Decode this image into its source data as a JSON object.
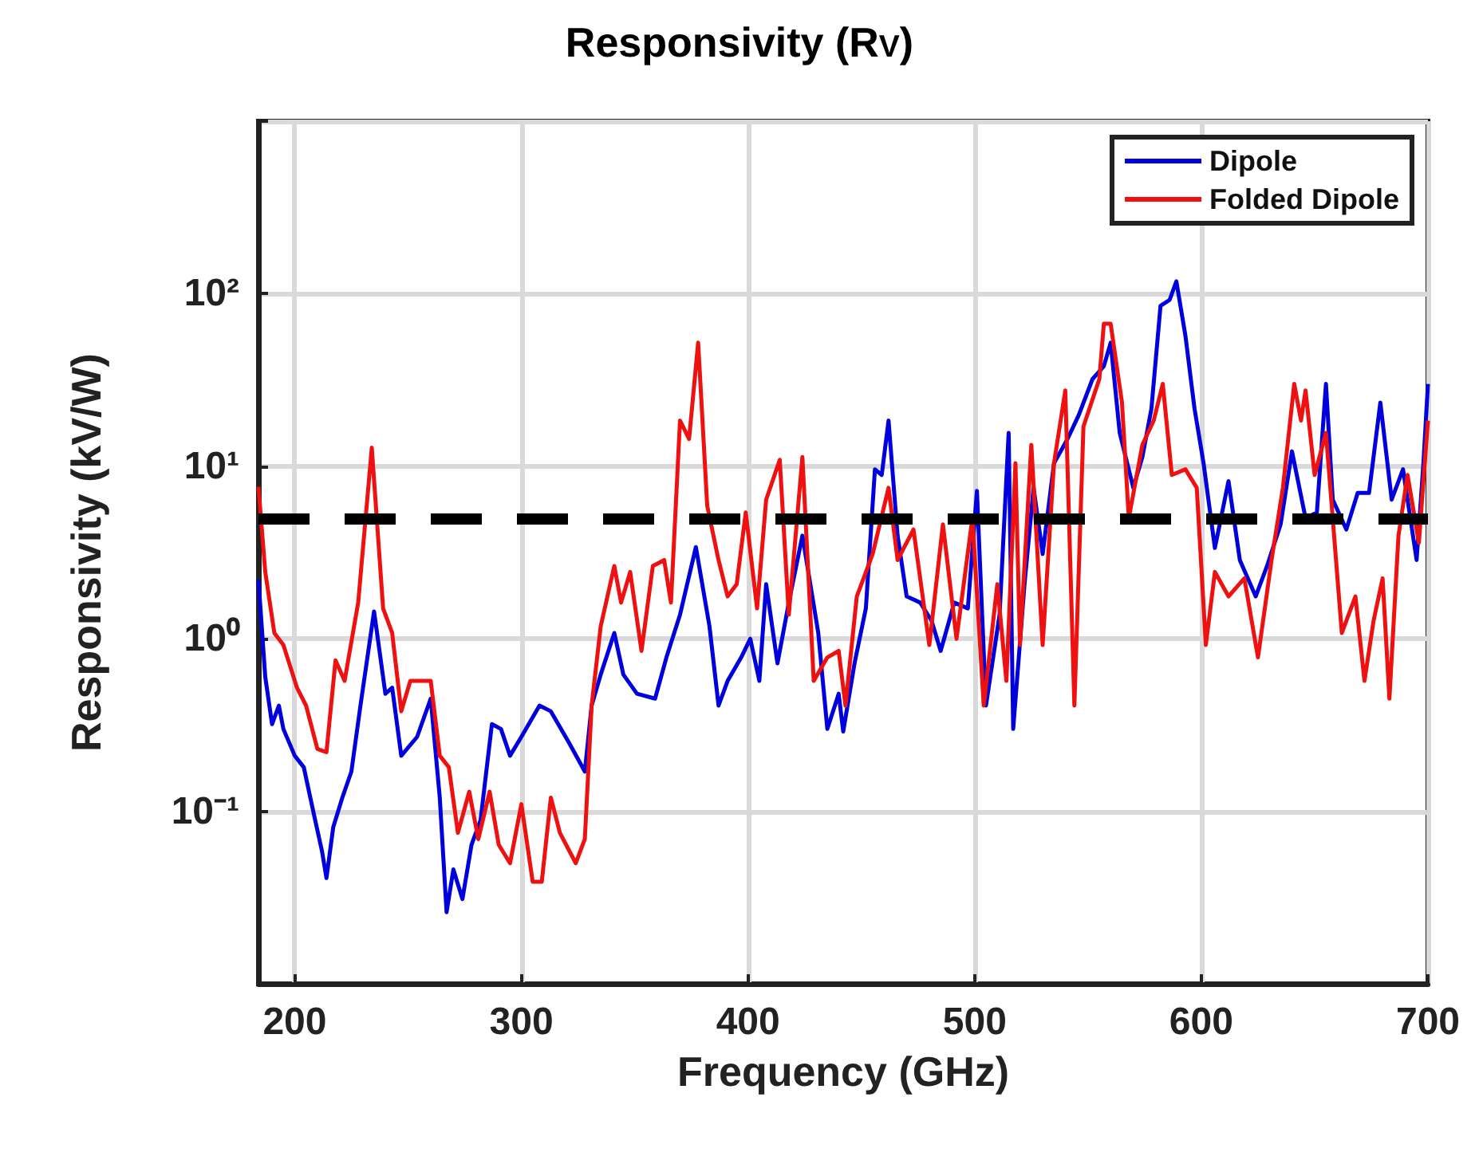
{
  "chart_data": {
    "type": "line",
    "title": "Responsivity (R$_{V}$)",
    "xlabel": "Frequency (GHz)",
    "ylabel": "Responsivity (kV/W)",
    "log": "y",
    "grid": true,
    "legend": "top right",
    "marker": "none",
    "line_style": "solid",
    "xlim": [
      184,
      700
    ],
    "xticks": [
      200,
      300,
      400,
      500,
      600,
      700
    ],
    "ylim": [
      0.01,
      1000
    ],
    "yticks": [
      {
        "value": 0.01,
        "label": null
      },
      {
        "value": 0.1,
        "label": "10⁻¹"
      },
      {
        "value": 1,
        "label": "10⁰"
      },
      {
        "value": 10,
        "label": "10¹"
      },
      {
        "value": 100,
        "label": "10²"
      },
      {
        "value": 1000,
        "label": null
      }
    ],
    "ref_lines": [
      {
        "axis": "y",
        "value": 5,
        "color": "#000000",
        "line_style": "dashed"
      }
    ],
    "series": [
      {
        "name": "Dipole",
        "color": "#0000dd",
        "x": [
          184,
          187,
          190,
          193,
          195,
          200,
          204,
          209,
          212,
          214,
          217,
          221,
          225,
          229,
          235,
          240,
          243,
          247,
          254,
          260,
          264,
          267,
          270,
          274,
          278,
          282,
          287,
          291,
          295,
          300,
          308,
          313,
          321,
          328,
          331,
          335,
          341,
          345,
          351,
          359,
          364,
          370,
          377,
          383,
          387,
          391,
          397,
          401,
          405,
          408,
          413,
          418,
          424,
          431,
          435,
          440,
          442,
          447,
          452,
          456,
          459,
          462,
          466,
          470,
          476,
          481,
          485,
          491,
          497,
          501,
          505,
          511,
          515,
          517,
          522,
          526,
          530,
          535,
          541,
          546,
          552,
          557,
          560,
          564,
          570,
          574,
          578,
          582,
          586,
          589,
          593,
          597,
          601,
          606,
          612,
          617,
          624,
          629,
          635,
          640,
          646,
          651,
          655,
          658,
          664,
          669,
          674,
          679,
          684,
          689,
          695,
          698,
          700
        ],
        "values": [
          2.2,
          0.6,
          0.32,
          0.41,
          0.3,
          0.21,
          0.18,
          0.089,
          0.059,
          0.041,
          0.081,
          0.12,
          0.17,
          0.41,
          1.44,
          0.48,
          0.52,
          0.21,
          0.27,
          0.45,
          0.12,
          0.026,
          0.046,
          0.031,
          0.064,
          0.089,
          0.32,
          0.3,
          0.21,
          0.27,
          0.41,
          0.38,
          0.25,
          0.17,
          0.41,
          0.62,
          1.08,
          0.62,
          0.48,
          0.45,
          0.78,
          1.38,
          3.4,
          1.18,
          0.41,
          0.57,
          0.78,
          1,
          0.57,
          2.07,
          0.72,
          1.62,
          3.96,
          1.08,
          0.3,
          0.48,
          0.29,
          0.72,
          1.5,
          9.6,
          8.9,
          18.4,
          3.96,
          1.76,
          1.62,
          1.27,
          0.85,
          1.62,
          1.5,
          7.2,
          0.41,
          1.38,
          15.6,
          0.3,
          2.07,
          7.5,
          3.1,
          10.4,
          14.4,
          19.9,
          32,
          38,
          52,
          15.6,
          7.5,
          11.3,
          21.6,
          85,
          92,
          118,
          57,
          21.6,
          10.4,
          3.36,
          8.2,
          2.86,
          1.76,
          2.64,
          4.6,
          12.2,
          5,
          5.4,
          30,
          6.4,
          4.3,
          7,
          7,
          23.4,
          6.4,
          9.6,
          2.86,
          10.4,
          30
        ]
      },
      {
        "name": "Folded Dipole",
        "color": "#ee1111",
        "x": [
          184,
          187,
          191,
          195,
          201,
          205,
          210,
          214,
          218,
          222,
          228,
          234,
          239,
          243,
          247,
          251,
          260,
          264,
          268,
          272,
          277,
          281,
          286,
          290,
          295,
          300,
          305,
          309,
          313,
          317,
          324,
          328,
          331,
          335,
          341,
          344,
          348,
          353,
          358,
          363,
          366,
          370,
          374,
          378,
          382,
          387,
          391,
          395,
          399,
          404,
          408,
          414,
          418,
          424,
          429,
          435,
          440,
          443,
          448,
          455,
          462,
          466,
          473,
          480,
          486,
          492,
          499,
          504,
          510,
          514,
          518,
          520,
          525,
          530,
          535,
          540,
          544,
          548,
          555,
          557,
          560,
          565,
          568,
          574,
          579,
          583,
          587,
          593,
          598,
          602,
          606,
          612,
          619,
          625,
          631,
          636,
          641,
          644,
          646,
          650,
          655,
          662,
          668,
          672,
          676,
          680,
          683,
          687,
          691,
          696,
          700
        ],
        "values": [
          7.6,
          2.44,
          1.08,
          0.92,
          0.52,
          0.41,
          0.23,
          0.22,
          0.75,
          0.57,
          1.62,
          12.8,
          1.5,
          1.08,
          0.38,
          0.57,
          0.57,
          0.21,
          0.18,
          0.075,
          0.13,
          0.069,
          0.13,
          0.064,
          0.05,
          0.11,
          0.039,
          0.039,
          0.12,
          0.075,
          0.05,
          0.069,
          0.41,
          1.18,
          2.64,
          1.62,
          2.44,
          0.85,
          2.64,
          2.86,
          1.62,
          18.4,
          14.4,
          52,
          5.9,
          2.86,
          1.76,
          2.07,
          5.4,
          1.5,
          6.4,
          10.9,
          1.38,
          11.3,
          0.57,
          0.78,
          0.85,
          0.41,
          1.76,
          3.1,
          7.5,
          2.86,
          4.3,
          0.92,
          4.6,
          1,
          5,
          0.41,
          2.07,
          0.57,
          10.4,
          0.92,
          13.3,
          0.92,
          10.4,
          27.5,
          0.41,
          17,
          32,
          67,
          67,
          23.4,
          5,
          13.3,
          18.4,
          30,
          8.9,
          9.6,
          7.5,
          0.92,
          2.44,
          1.76,
          2.24,
          0.78,
          2.86,
          7.5,
          30,
          18.4,
          27.5,
          8.9,
          15.6,
          1.08,
          1.76,
          0.57,
          1.27,
          2.24,
          0.45,
          3.96,
          8.9,
          3.6,
          18.4
        ]
      }
    ]
  }
}
